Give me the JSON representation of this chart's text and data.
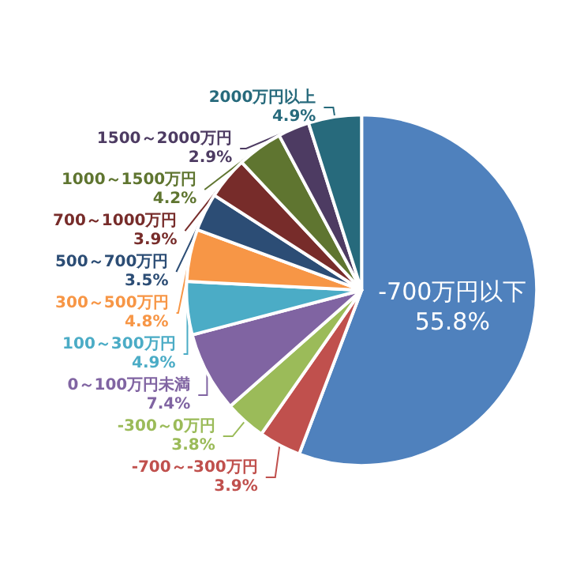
{
  "chart_data": {
    "type": "pie",
    "categories": [
      "-700万円以下",
      "-700～-300万円",
      "-300～0万円",
      "0～100万円未満",
      "100～300万円",
      "300～500万円",
      "500～700万円",
      "700～1000万円",
      "1000～1500万円",
      "1500～2000万円",
      "2000万円以上"
    ],
    "values": [
      55.8,
      3.9,
      3.8,
      7.4,
      4.9,
      4.8,
      3.5,
      3.9,
      4.2,
      2.9,
      4.9
    ],
    "value_labels": [
      "55.8%",
      "3.9%",
      "3.8%",
      "7.4%",
      "4.9%",
      "4.8%",
      "3.5%",
      "3.9%",
      "4.2%",
      "2.9%",
      "4.9%"
    ],
    "colors": [
      "#4f81bd",
      "#c0504d",
      "#9bbb59",
      "#8064a2",
      "#4bacc6",
      "#f79646",
      "#2c4d75",
      "#772c2a",
      "#5f7530",
      "#4d3b62",
      "#276a7c"
    ],
    "legend": false
  }
}
